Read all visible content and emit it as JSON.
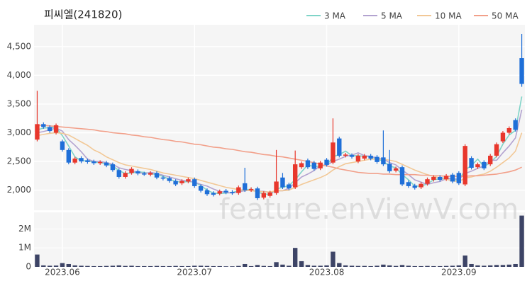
{
  "chart_data": {
    "type": "candlestick",
    "title": "피씨엘(241820)",
    "watermark": "feature.enViewV.com",
    "categories": [
      null,
      null,
      null,
      null,
      "2023.06",
      null,
      null,
      null,
      null,
      null,
      null,
      null,
      null,
      null,
      null,
      null,
      null,
      null,
      null,
      null,
      null,
      null,
      null,
      null,
      null,
      "2023.07",
      null,
      null,
      null,
      null,
      null,
      null,
      null,
      null,
      null,
      null,
      null,
      null,
      null,
      null,
      null,
      null,
      null,
      null,
      null,
      null,
      "2023.08",
      null,
      null,
      null,
      null,
      null,
      null,
      null,
      null,
      null,
      null,
      null,
      null,
      null,
      null,
      null,
      null,
      null,
      null,
      null,
      null,
      "2023.09",
      null,
      null,
      null,
      null,
      null,
      null,
      null,
      null,
      null,
      null
    ],
    "open": [
      2880,
      3150,
      3100,
      3000,
      2850,
      2700,
      2480,
      2560,
      2520,
      2500,
      2470,
      2480,
      2450,
      2350,
      2230,
      2300,
      2330,
      2290,
      2270,
      2300,
      2220,
      2210,
      2160,
      2120,
      2150,
      2190,
      2070,
      2000,
      1950,
      1940,
      1990,
      1970,
      1950,
      2120,
      2000,
      2030,
      1870,
      1900,
      1950,
      2220,
      2100,
      2050,
      2400,
      2520,
      2480,
      2380,
      2530,
      2480,
      2900,
      2600,
      2610,
      2500,
      2550,
      2600,
      2580,
      2570,
      2460,
      2340,
      2400,
      2140,
      2080,
      2050,
      2110,
      2180,
      2230,
      2190,
      2270,
      2300,
      2100,
      2560,
      2400,
      2490,
      2450,
      2600,
      2850,
      3000,
      3220,
      4300
    ],
    "high": [
      3730,
      3180,
      3130,
      3160,
      2880,
      2730,
      2580,
      2590,
      2550,
      2530,
      2520,
      2510,
      2480,
      2380,
      2330,
      2400,
      2360,
      2320,
      2330,
      2330,
      2250,
      2240,
      2190,
      2190,
      2220,
      2220,
      2100,
      2030,
      1980,
      2010,
      2020,
      2000,
      2080,
      2390,
      2050,
      2060,
      1980,
      1990,
      2700,
      2300,
      2130,
      2690,
      2500,
      2550,
      2510,
      2510,
      2560,
      3250,
      2930,
      2650,
      2640,
      2630,
      2630,
      2630,
      2610,
      3040,
      2700,
      2410,
      2430,
      2170,
      2110,
      2140,
      2220,
      2260,
      2260,
      2280,
      2300,
      2330,
      2800,
      2590,
      2480,
      2520,
      2630,
      2830,
      3030,
      3110,
      3250,
      4720
    ],
    "low": [
      2850,
      3070,
      3000,
      2970,
      2670,
      2450,
      2450,
      2470,
      2460,
      2440,
      2440,
      2400,
      2320,
      2200,
      2200,
      2270,
      2260,
      2250,
      2240,
      2190,
      2170,
      2130,
      2070,
      2090,
      2120,
      2040,
      1960,
      1900,
      1890,
      1910,
      1930,
      1920,
      1920,
      1970,
      1970,
      1830,
      1840,
      1870,
      1920,
      2020,
      2000,
      2020,
      2370,
      2370,
      2340,
      2350,
      2410,
      2450,
      2570,
      2570,
      2550,
      2470,
      2520,
      2520,
      2460,
      2420,
      2300,
      2310,
      2070,
      2040,
      2010,
      2020,
      2080,
      2150,
      2150,
      2160,
      2120,
      2090,
      2070,
      2360,
      2370,
      2350,
      2420,
      2570,
      2820,
      2970,
      3020,
      3800
    ],
    "close": [
      3150,
      3100,
      3030,
      3130,
      2700,
      2480,
      2550,
      2500,
      2490,
      2470,
      2490,
      2430,
      2350,
      2230,
      2300,
      2370,
      2290,
      2280,
      2300,
      2220,
      2200,
      2160,
      2100,
      2160,
      2190,
      2070,
      1990,
      1930,
      1920,
      1980,
      1960,
      1950,
      2050,
      2000,
      2020,
      1860,
      1950,
      1960,
      2150,
      2050,
      2030,
      2450,
      2470,
      2400,
      2370,
      2480,
      2440,
      2830,
      2600,
      2620,
      2580,
      2600,
      2600,
      2550,
      2490,
      2450,
      2330,
      2380,
      2100,
      2070,
      2040,
      2110,
      2190,
      2230,
      2180,
      2250,
      2150,
      2120,
      2770,
      2390,
      2450,
      2380,
      2600,
      2800,
      3000,
      3080,
      3050,
      3850
    ],
    "up_color": "#e8372c",
    "down_color": "#1f6fd8",
    "ylim": [
      1650,
      4880
    ],
    "yticks": [
      {
        "value": 2000,
        "label": "2,000"
      },
      {
        "value": 2500,
        "label": "2,500"
      },
      {
        "value": 3000,
        "label": "3,000"
      },
      {
        "value": 3500,
        "label": "3,500"
      },
      {
        "value": 4000,
        "label": "4,000"
      },
      {
        "value": 4500,
        "label": "4,500"
      }
    ],
    "series": [
      {
        "name": "3 MA",
        "color": "#7fd4c8",
        "values": [
          3050,
          3080,
          3090,
          3090,
          2950,
          2770,
          2580,
          2510,
          2510,
          2490,
          2480,
          2460,
          2420,
          2340,
          2290,
          2300,
          2320,
          2310,
          2290,
          2270,
          2240,
          2190,
          2150,
          2140,
          2150,
          2140,
          2080,
          2000,
          1950,
          1940,
          1950,
          1960,
          1990,
          2000,
          2020,
          1960,
          1940,
          1920,
          2020,
          2050,
          2080,
          2180,
          2320,
          2440,
          2410,
          2420,
          2430,
          2580,
          2620,
          2680,
          2600,
          2600,
          2590,
          2580,
          2550,
          2500,
          2420,
          2390,
          2270,
          2180,
          2070,
          2070,
          2110,
          2180,
          2200,
          2220,
          2190,
          2170,
          2350,
          2430,
          2540,
          2410,
          2480,
          2590,
          2800,
          2960,
          3040,
          3630
        ]
      },
      {
        "name": "5 MA",
        "color": "#b3a3d0",
        "values": [
          3000,
          3020,
          3050,
          3080,
          3030,
          2880,
          2780,
          2670,
          2540,
          2500,
          2500,
          2480,
          2450,
          2390,
          2360,
          2340,
          2310,
          2290,
          2310,
          2290,
          2260,
          2230,
          2200,
          2170,
          2160,
          2140,
          2100,
          2070,
          2020,
          1980,
          1960,
          1950,
          1970,
          1990,
          2000,
          1980,
          1980,
          1960,
          1990,
          1990,
          2030,
          2130,
          2230,
          2280,
          2340,
          2430,
          2430,
          2500,
          2540,
          2590,
          2610,
          2650,
          2600,
          2590,
          2560,
          2540,
          2480,
          2440,
          2350,
          2270,
          2180,
          2140,
          2100,
          2130,
          2150,
          2200,
          2200,
          2190,
          2290,
          2330,
          2380,
          2420,
          2520,
          2520,
          2650,
          2770,
          2910,
          3400
        ]
      },
      {
        "name": "10 MA",
        "color": "#f2c896",
        "values": [
          2950,
          2970,
          2990,
          3000,
          2990,
          2960,
          2900,
          2840,
          2780,
          2700,
          2650,
          2580,
          2530,
          2480,
          2440,
          2420,
          2400,
          2380,
          2360,
          2330,
          2300,
          2280,
          2260,
          2240,
          2220,
          2200,
          2170,
          2140,
          2110,
          2080,
          2050,
          2030,
          2010,
          2000,
          1990,
          1980,
          1970,
          1970,
          1990,
          1990,
          2000,
          2050,
          2100,
          2140,
          2180,
          2220,
          2270,
          2350,
          2410,
          2460,
          2480,
          2500,
          2520,
          2540,
          2540,
          2540,
          2520,
          2500,
          2450,
          2400,
          2350,
          2310,
          2270,
          2240,
          2210,
          2190,
          2160,
          2150,
          2210,
          2230,
          2260,
          2280,
          2330,
          2400,
          2480,
          2560,
          2680,
          3000
        ]
      },
      {
        "name": "50 MA",
        "color": "#f2a08a",
        "values": [
          3130,
          3130,
          3120,
          3110,
          3100,
          3090,
          3080,
          3070,
          3060,
          3050,
          3030,
          3020,
          3000,
          2990,
          2980,
          2960,
          2950,
          2930,
          2920,
          2900,
          2880,
          2870,
          2850,
          2840,
          2820,
          2800,
          2790,
          2770,
          2750,
          2740,
          2720,
          2710,
          2690,
          2670,
          2660,
          2640,
          2620,
          2610,
          2590,
          2580,
          2560,
          2540,
          2520,
          2500,
          2480,
          2450,
          2420,
          2400,
          2370,
          2350,
          2330,
          2310,
          2300,
          2290,
          2290,
          2280,
          2280,
          2270,
          2270,
          2270,
          2270,
          2260,
          2260,
          2250,
          2250,
          2240,
          2240,
          2240,
          2240,
          2250,
          2250,
          2260,
          2270,
          2280,
          2300,
          2320,
          2350,
          2400
        ]
      }
    ],
    "volume": {
      "color": "#3d4466",
      "values": [
        650000,
        80000,
        60000,
        70000,
        200000,
        150000,
        80000,
        60000,
        50000,
        40000,
        40000,
        50000,
        60000,
        80000,
        50000,
        60000,
        40000,
        40000,
        40000,
        50000,
        40000,
        40000,
        50000,
        40000,
        40000,
        60000,
        60000,
        50000,
        40000,
        40000,
        30000,
        30000,
        50000,
        150000,
        40000,
        100000,
        50000,
        40000,
        250000,
        120000,
        60000,
        1000000,
        300000,
        100000,
        60000,
        60000,
        80000,
        800000,
        200000,
        80000,
        60000,
        50000,
        50000,
        40000,
        60000,
        120000,
        80000,
        50000,
        100000,
        60000,
        40000,
        40000,
        50000,
        40000,
        40000,
        50000,
        60000,
        80000,
        600000,
        150000,
        80000,
        60000,
        80000,
        100000,
        100000,
        120000,
        150000,
        2700000
      ],
      "ylim": [
        0,
        2870000
      ],
      "yticks": [
        0,
        {
          "value": 1000000,
          "label": "1M"
        },
        {
          "value": 2000000,
          "label": "2M"
        }
      ]
    }
  }
}
